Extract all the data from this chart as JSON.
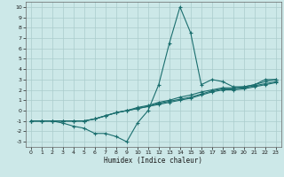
{
  "xlabel": "Humidex (Indice chaleur)",
  "bg_color": "#cce8e8",
  "grid_color": "#aacccc",
  "line_color": "#1a6e6e",
  "xlim": [
    -0.5,
    23.5
  ],
  "ylim": [
    -3.5,
    10.5
  ],
  "xticks": [
    0,
    1,
    2,
    3,
    4,
    5,
    6,
    7,
    8,
    9,
    10,
    11,
    12,
    13,
    14,
    15,
    16,
    17,
    18,
    19,
    20,
    21,
    22,
    23
  ],
  "yticks": [
    -3,
    -2,
    -1,
    0,
    1,
    2,
    3,
    4,
    5,
    6,
    7,
    8,
    9,
    10
  ],
  "series": [
    {
      "x": [
        0,
        1,
        2,
        3,
        4,
        5,
        6,
        7,
        8,
        9,
        10,
        11,
        12,
        13,
        14,
        15,
        16,
        17,
        18,
        19,
        20,
        21,
        22,
        23
      ],
      "y": [
        -1,
        -1,
        -1,
        -1.2,
        -1.5,
        -1.7,
        -2.2,
        -2.2,
        -2.5,
        -3.0,
        -1.2,
        0.0,
        2.5,
        6.5,
        10.0,
        7.5,
        2.5,
        3.0,
        2.8,
        2.3,
        2.3,
        2.5,
        3.0,
        3.0
      ]
    },
    {
      "x": [
        0,
        1,
        2,
        3,
        4,
        5,
        6,
        7,
        8,
        9,
        10,
        11,
        12,
        13,
        14,
        15,
        16,
        17,
        18,
        19,
        20,
        21,
        22,
        23
      ],
      "y": [
        -1,
        -1,
        -1,
        -1,
        -1,
        -1,
        -0.8,
        -0.5,
        -0.2,
        0.0,
        0.3,
        0.5,
        0.8,
        1.0,
        1.3,
        1.5,
        1.8,
        2.0,
        2.2,
        2.2,
        2.3,
        2.5,
        2.8,
        3.0
      ]
    },
    {
      "x": [
        0,
        1,
        2,
        3,
        4,
        5,
        6,
        7,
        8,
        9,
        10,
        11,
        12,
        13,
        14,
        15,
        16,
        17,
        18,
        19,
        20,
        21,
        22,
        23
      ],
      "y": [
        -1,
        -1,
        -1,
        -1,
        -1,
        -1,
        -0.8,
        -0.5,
        -0.2,
        0.0,
        0.2,
        0.4,
        0.7,
        0.9,
        1.1,
        1.3,
        1.6,
        1.9,
        2.1,
        2.1,
        2.2,
        2.4,
        2.6,
        2.8
      ]
    },
    {
      "x": [
        0,
        1,
        2,
        3,
        4,
        5,
        6,
        7,
        8,
        9,
        10,
        11,
        12,
        13,
        14,
        15,
        16,
        17,
        18,
        19,
        20,
        21,
        22,
        23
      ],
      "y": [
        -1,
        -1,
        -1,
        -1,
        -1,
        -1,
        -0.8,
        -0.5,
        -0.2,
        0.0,
        0.2,
        0.4,
        0.6,
        0.8,
        1.0,
        1.2,
        1.5,
        1.8,
        2.0,
        2.0,
        2.1,
        2.3,
        2.5,
        2.7
      ]
    }
  ]
}
